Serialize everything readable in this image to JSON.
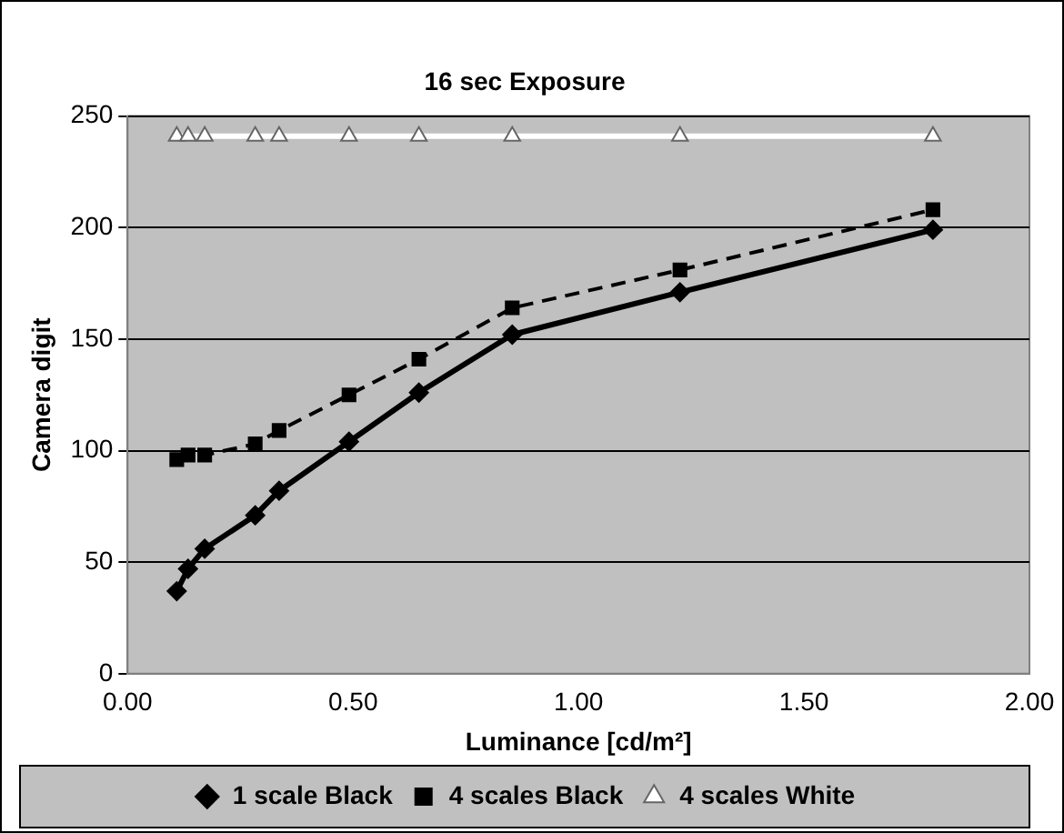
{
  "chart_data": {
    "type": "line",
    "title": "16 sec Exposure",
    "xlabel": "Luminance [cd/m²]",
    "ylabel": "Camera digit",
    "x": [
      0.109,
      0.134,
      0.171,
      0.283,
      0.336,
      0.491,
      0.646,
      0.853,
      1.225,
      1.786
    ],
    "series": [
      {
        "name": "1 scale Black",
        "color": "#000000",
        "marker": "diamond",
        "line_style": "solid",
        "values": [
          37,
          47,
          56,
          71,
          82,
          104,
          126,
          152,
          171,
          199
        ]
      },
      {
        "name": "4 scales Black",
        "color": "#000000",
        "marker": "square",
        "line_style": "dashed",
        "values": [
          96,
          98,
          98,
          103,
          109,
          125,
          141,
          164,
          181,
          208
        ]
      },
      {
        "name": "4 scales White",
        "color": "#ffffff",
        "marker": "triangle",
        "line_style": "solid",
        "values": [
          241,
          241,
          241,
          241,
          241,
          241,
          241,
          241,
          241,
          241
        ]
      }
    ],
    "xlim": [
      0,
      2
    ],
    "xticks": [
      {
        "value": 0,
        "label": "0.00"
      },
      {
        "value": 0.5,
        "label": "0.50"
      },
      {
        "value": 1,
        "label": "1.00"
      },
      {
        "value": 1.5,
        "label": "1.50"
      },
      {
        "value": 2,
        "label": "2.00"
      }
    ],
    "ylim": [
      0,
      250
    ],
    "yticks": [
      0,
      50,
      100,
      150,
      200,
      250
    ],
    "grid": "y",
    "legend": "bottom"
  }
}
